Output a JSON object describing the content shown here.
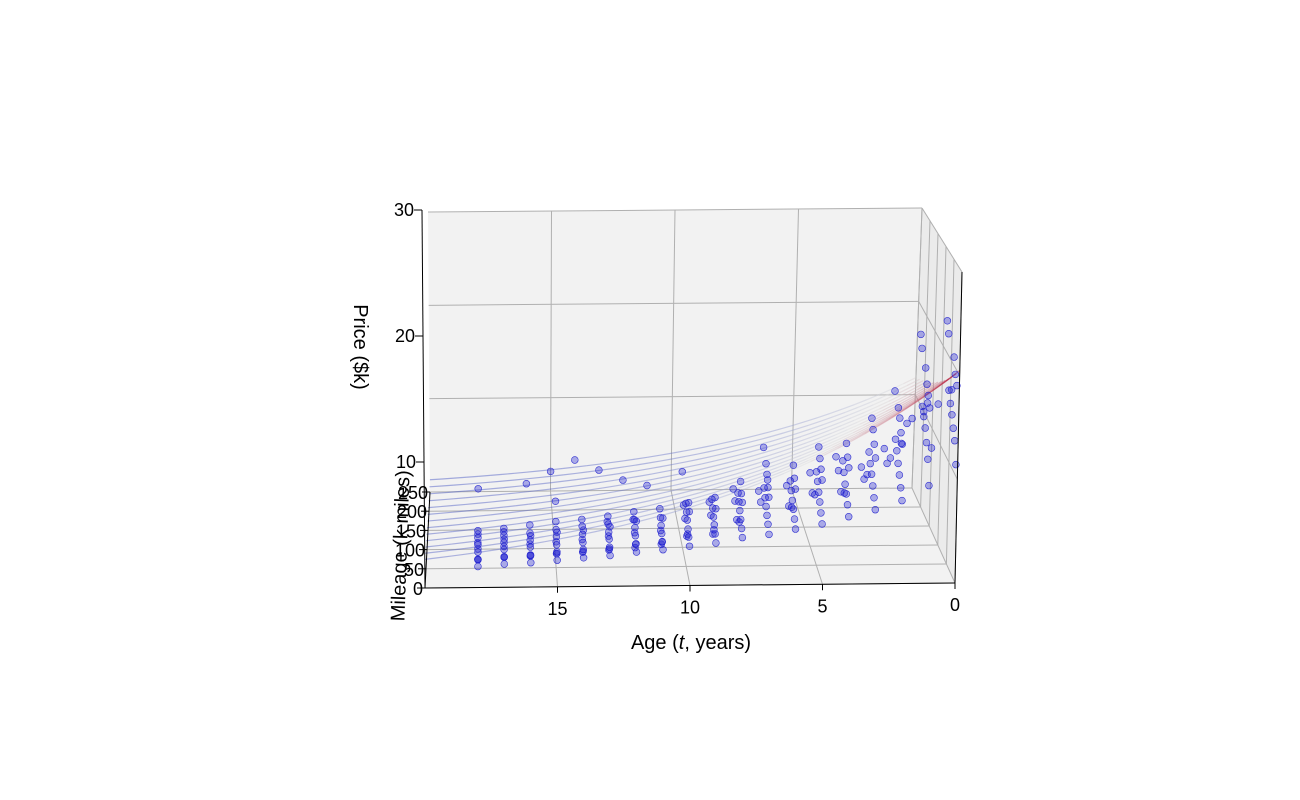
{
  "chart_data": {
    "type": "scatter",
    "projection": "3d",
    "title": "",
    "xlabel": "Age (t, years)",
    "xlabel_parts": {
      "before": "Age (",
      "italic": "t",
      "after": ", years)"
    },
    "ylabel": "Mileage (k miles)",
    "zlabel": "Price ($k)",
    "xlim": [
      0,
      20
    ],
    "ylim": [
      0,
      250
    ],
    "zlim": [
      0,
      30
    ],
    "x_ticks": [
      "15",
      "10",
      "5",
      "0"
    ],
    "x_tick_values": [
      15,
      10,
      5,
      0
    ],
    "y_ticks": [
      "0",
      "50",
      "100",
      "150",
      "200",
      "250"
    ],
    "y_tick_values": [
      0,
      50,
      100,
      150,
      200,
      250
    ],
    "z_ticks": [
      "10",
      "20",
      "30"
    ],
    "z_tick_values": [
      10,
      20,
      30
    ],
    "grid": true,
    "scatter_color": "#0000cc",
    "surface_colormap": [
      "#3b4cc0",
      "#dddddd",
      "#b40426"
    ],
    "series": [
      {
        "type": "scatter",
        "points": [
          [
            0,
            10,
            11.1
          ],
          [
            0,
            20,
            13.1
          ],
          [
            0,
            30,
            14.0
          ],
          [
            0,
            40,
            15.0
          ],
          [
            0,
            50,
            15.8
          ],
          [
            0,
            60,
            16.8
          ],
          [
            0,
            15,
            18.6
          ],
          [
            0,
            25,
            19.4
          ],
          [
            0,
            35,
            20.8
          ],
          [
            0,
            45,
            17.3
          ],
          [
            0,
            70,
            22.1
          ],
          [
            0,
            80,
            23.1
          ],
          [
            0,
            120,
            13.5
          ],
          [
            0,
            150,
            8.0
          ],
          [
            0,
            180,
            11.6
          ],
          [
            0,
            200,
            10.0
          ],
          [
            1,
            10,
            9.0
          ],
          [
            1,
            20,
            11.2
          ],
          [
            1,
            30,
            12.5
          ],
          [
            1,
            40,
            13.6
          ],
          [
            1,
            50,
            14.4
          ],
          [
            1,
            60,
            15.1
          ],
          [
            1,
            15,
            16.3
          ],
          [
            1,
            25,
            17.2
          ],
          [
            1,
            35,
            18.0
          ],
          [
            1,
            45,
            19.3
          ],
          [
            1,
            70,
            20.5
          ],
          [
            1,
            80,
            21.6
          ],
          [
            1,
            120,
            12.0
          ],
          [
            1,
            150,
            10.5
          ],
          [
            1,
            180,
            7.4
          ],
          [
            2,
            10,
            7.5
          ],
          [
            2,
            20,
            8.4
          ],
          [
            2,
            30,
            9.3
          ],
          [
            2,
            40,
            10.1
          ],
          [
            2,
            50,
            11.0
          ],
          [
            2,
            60,
            11.8
          ],
          [
            2,
            15,
            12.7
          ],
          [
            2,
            25,
            13.5
          ],
          [
            2,
            35,
            14.6
          ],
          [
            2,
            45,
            15.3
          ],
          [
            2,
            70,
            16.2
          ],
          [
            2,
            90,
            9.0
          ],
          [
            2,
            110,
            7.8
          ],
          [
            2,
            130,
            8.6
          ],
          [
            3,
            10,
            6.6
          ],
          [
            3,
            20,
            7.4
          ],
          [
            3,
            30,
            8.2
          ],
          [
            3,
            40,
            9.0
          ],
          [
            3,
            50,
            9.7
          ],
          [
            3,
            60,
            10.5
          ],
          [
            3,
            15,
            11.3
          ],
          [
            3,
            25,
            12.3
          ],
          [
            3,
            35,
            13.4
          ],
          [
            3,
            45,
            14.2
          ],
          [
            3,
            70,
            8.0
          ],
          [
            3,
            90,
            6.9
          ],
          [
            3,
            110,
            7.4
          ],
          [
            4,
            10,
            5.9
          ],
          [
            4,
            20,
            6.7
          ],
          [
            4,
            30,
            7.4
          ],
          [
            4,
            40,
            8.0
          ],
          [
            4,
            50,
            8.8
          ],
          [
            4,
            60,
            9.6
          ],
          [
            4,
            15,
            10.3
          ],
          [
            4,
            25,
            11.0
          ],
          [
            4,
            35,
            12.0
          ],
          [
            4,
            45,
            7.0
          ],
          [
            4,
            70,
            6.3
          ],
          [
            4,
            90,
            7.7
          ],
          [
            4,
            110,
            8.4
          ],
          [
            5,
            10,
            5.2
          ],
          [
            5,
            20,
            5.9
          ],
          [
            5,
            30,
            6.6
          ],
          [
            5,
            40,
            7.2
          ],
          [
            5,
            50,
            7.9
          ],
          [
            5,
            60,
            8.5
          ],
          [
            5,
            15,
            9.1
          ],
          [
            5,
            25,
            9.8
          ],
          [
            5,
            35,
            10.5
          ],
          [
            5,
            45,
            11.3
          ],
          [
            5,
            70,
            6.0
          ],
          [
            5,
            90,
            5.5
          ],
          [
            5,
            110,
            6.8
          ],
          [
            6,
            10,
            4.7
          ],
          [
            6,
            20,
            5.3
          ],
          [
            6,
            30,
            5.9
          ],
          [
            6,
            40,
            6.4
          ],
          [
            6,
            50,
            7.0
          ],
          [
            6,
            60,
            7.6
          ],
          [
            6,
            15,
            8.2
          ],
          [
            6,
            25,
            8.9
          ],
          [
            6,
            35,
            9.8
          ],
          [
            6,
            45,
            5.6
          ],
          [
            6,
            70,
            4.9
          ],
          [
            6,
            90,
            6.2
          ],
          [
            6,
            250,
            1.0
          ],
          [
            7,
            10,
            4.2
          ],
          [
            7,
            20,
            4.8
          ],
          [
            7,
            30,
            5.3
          ],
          [
            7,
            40,
            5.8
          ],
          [
            7,
            50,
            6.3
          ],
          [
            7,
            60,
            6.9
          ],
          [
            7,
            15,
            7.4
          ],
          [
            7,
            25,
            8.0
          ],
          [
            7,
            35,
            8.9
          ],
          [
            7,
            45,
            9.6
          ],
          [
            7,
            70,
            10.4
          ],
          [
            7,
            90,
            4.6
          ],
          [
            7,
            110,
            5.0
          ],
          [
            8,
            10,
            3.9
          ],
          [
            8,
            20,
            4.4
          ],
          [
            8,
            30,
            4.9
          ],
          [
            8,
            40,
            5.4
          ],
          [
            8,
            50,
            5.9
          ],
          [
            8,
            60,
            6.4
          ],
          [
            8,
            15,
            6.9
          ],
          [
            8,
            25,
            7.4
          ],
          [
            8,
            35,
            8.2
          ],
          [
            8,
            45,
            4.2
          ],
          [
            8,
            70,
            3.6
          ],
          [
            8,
            90,
            4.7
          ],
          [
            8,
            110,
            5.2
          ],
          [
            9,
            10,
            3.4
          ],
          [
            9,
            20,
            3.9
          ],
          [
            9,
            30,
            4.4
          ],
          [
            9,
            40,
            4.8
          ],
          [
            9,
            50,
            5.3
          ],
          [
            9,
            60,
            5.8
          ],
          [
            9,
            15,
            6.3
          ],
          [
            9,
            25,
            7.0
          ],
          [
            9,
            35,
            3.8
          ],
          [
            9,
            45,
            3.1
          ],
          [
            9,
            70,
            4.0
          ],
          [
            9,
            90,
            4.6
          ],
          [
            10,
            10,
            3.1
          ],
          [
            10,
            20,
            3.6
          ],
          [
            10,
            30,
            4.0
          ],
          [
            10,
            40,
            4.5
          ],
          [
            10,
            50,
            4.9
          ],
          [
            10,
            60,
            5.4
          ],
          [
            10,
            15,
            6.0
          ],
          [
            10,
            25,
            6.5
          ],
          [
            10,
            35,
            3.4
          ],
          [
            10,
            45,
            2.9
          ],
          [
            10,
            70,
            3.7
          ],
          [
            10,
            90,
            4.3
          ],
          [
            10,
            110,
            6.8
          ],
          [
            11,
            10,
            2.8
          ],
          [
            11,
            20,
            3.2
          ],
          [
            11,
            30,
            3.6
          ],
          [
            11,
            40,
            4.0
          ],
          [
            11,
            50,
            4.4
          ],
          [
            11,
            60,
            4.9
          ],
          [
            11,
            15,
            5.4
          ],
          [
            11,
            25,
            3.0
          ],
          [
            11,
            35,
            2.5
          ],
          [
            11,
            45,
            3.4
          ],
          [
            11,
            250,
            0.5
          ],
          [
            12,
            10,
            2.6
          ],
          [
            12,
            20,
            3.0
          ],
          [
            12,
            30,
            3.4
          ],
          [
            12,
            40,
            3.8
          ],
          [
            12,
            50,
            4.2
          ],
          [
            12,
            60,
            4.6
          ],
          [
            12,
            15,
            5.1
          ],
          [
            12,
            25,
            2.8
          ],
          [
            12,
            35,
            2.2
          ],
          [
            12,
            45,
            3.2
          ],
          [
            12,
            70,
            3.6
          ],
          [
            12,
            250,
            1.1
          ],
          [
            13,
            10,
            2.3
          ],
          [
            13,
            20,
            2.7
          ],
          [
            13,
            30,
            3.1
          ],
          [
            13,
            40,
            3.4
          ],
          [
            13,
            50,
            3.8
          ],
          [
            13,
            60,
            4.2
          ],
          [
            13,
            15,
            4.6
          ],
          [
            13,
            25,
            2.4
          ],
          [
            13,
            35,
            2.0
          ],
          [
            13,
            45,
            2.9
          ],
          [
            13,
            70,
            3.4
          ],
          [
            13,
            250,
            2.2
          ],
          [
            14,
            10,
            2.1
          ],
          [
            14,
            20,
            2.5
          ],
          [
            14,
            30,
            2.8
          ],
          [
            14,
            40,
            3.2
          ],
          [
            14,
            50,
            3.6
          ],
          [
            14,
            60,
            3.9
          ],
          [
            14,
            15,
            4.3
          ],
          [
            14,
            25,
            2.2
          ],
          [
            14,
            35,
            1.8
          ],
          [
            14,
            45,
            2.6
          ],
          [
            14,
            250,
            3.3
          ],
          [
            15,
            10,
            1.9
          ],
          [
            15,
            20,
            2.3
          ],
          [
            15,
            30,
            2.6
          ],
          [
            15,
            40,
            3.0
          ],
          [
            15,
            50,
            3.3
          ],
          [
            15,
            60,
            3.7
          ],
          [
            15,
            15,
            4.1
          ],
          [
            15,
            25,
            2.0
          ],
          [
            15,
            35,
            1.7
          ],
          [
            15,
            45,
            2.4
          ],
          [
            15,
            70,
            5.2
          ],
          [
            15,
            250,
            2.1
          ],
          [
            16,
            10,
            1.7
          ],
          [
            16,
            20,
            2.0
          ],
          [
            16,
            30,
            2.4
          ],
          [
            16,
            40,
            2.7
          ],
          [
            16,
            50,
            3.0
          ],
          [
            16,
            60,
            3.4
          ],
          [
            16,
            15,
            3.8
          ],
          [
            16,
            25,
            1.9
          ],
          [
            16,
            35,
            1.5
          ],
          [
            16,
            45,
            2.2
          ],
          [
            16,
            250,
            0.8
          ],
          [
            17,
            10,
            1.6
          ],
          [
            17,
            20,
            1.9
          ],
          [
            17,
            30,
            2.2
          ],
          [
            17,
            40,
            2.5
          ],
          [
            17,
            50,
            2.8
          ],
          [
            17,
            60,
            3.1
          ],
          [
            17,
            15,
            3.5
          ],
          [
            17,
            25,
            1.7
          ],
          [
            17,
            35,
            1.4
          ],
          [
            17,
            45,
            2.0
          ],
          [
            17,
            70,
            2.5
          ],
          [
            18,
            10,
            1.4
          ],
          [
            18,
            20,
            1.7
          ],
          [
            18,
            30,
            2.0
          ],
          [
            18,
            40,
            2.3
          ],
          [
            18,
            50,
            2.6
          ],
          [
            18,
            60,
            2.9
          ],
          [
            18,
            15,
            3.2
          ],
          [
            18,
            25,
            1.5
          ],
          [
            18,
            35,
            1.2
          ],
          [
            18,
            45,
            1.8
          ],
          [
            18,
            70,
            2.3
          ],
          [
            18,
            250,
            0.3
          ]
        ]
      },
      {
        "type": "surface",
        "model": "exponential_decay_in_age_and_mileage",
        "a": 20.5,
        "b_age": 0.11,
        "b_mileage": 0.0022
      }
    ]
  }
}
